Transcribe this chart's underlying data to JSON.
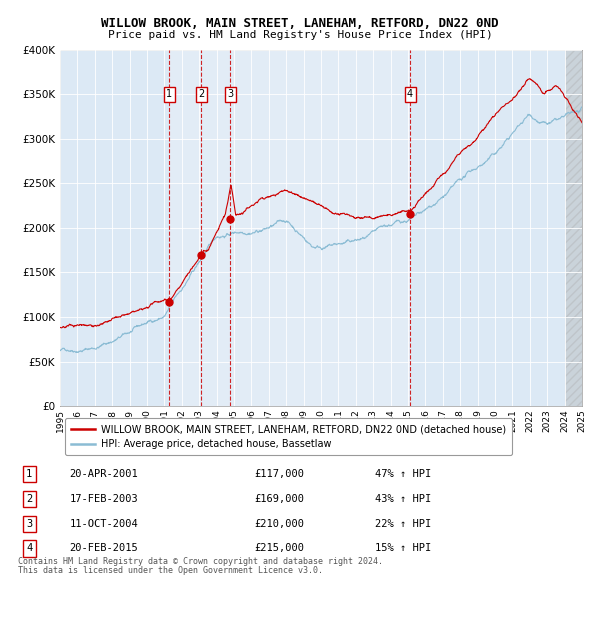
{
  "title": "WILLOW BROOK, MAIN STREET, LANEHAM, RETFORD, DN22 0ND",
  "subtitle": "Price paid vs. HM Land Registry's House Price Index (HPI)",
  "bg_color": "#dce9f5",
  "line1_color": "#cc0000",
  "line2_color": "#8bbcd4",
  "line1_label": "WILLOW BROOK, MAIN STREET, LANEHAM, RETFORD, DN22 0ND (detached house)",
  "line2_label": "HPI: Average price, detached house, Bassetlaw",
  "ylabel_ticks": [
    "£0",
    "£50K",
    "£100K",
    "£150K",
    "£200K",
    "£250K",
    "£300K",
    "£350K",
    "£400K"
  ],
  "ytick_values": [
    0,
    50000,
    100000,
    150000,
    200000,
    250000,
    300000,
    350000,
    400000
  ],
  "xmin": 1995,
  "xmax": 2025,
  "ymin": 0,
  "ymax": 400000,
  "sales": [
    {
      "num": 1,
      "date": "20-APR-2001",
      "year": 2001.29,
      "price": 117000,
      "pct": "47%",
      "dir": "↑"
    },
    {
      "num": 2,
      "date": "17-FEB-2003",
      "year": 2003.12,
      "price": 169000,
      "pct": "43%",
      "dir": "↑"
    },
    {
      "num": 3,
      "date": "11-OCT-2004",
      "year": 2004.78,
      "price": 210000,
      "pct": "22%",
      "dir": "↑"
    },
    {
      "num": 4,
      "date": "20-FEB-2015",
      "year": 2015.12,
      "price": 215000,
      "pct": "15%",
      "dir": "↑"
    }
  ],
  "footnote1": "Contains HM Land Registry data © Crown copyright and database right 2024.",
  "footnote2": "This data is licensed under the Open Government Licence v3.0.",
  "hatch_start": 2024.0,
  "hatch_end": 2025.0,
  "owned_shade_alpha": 0.18
}
